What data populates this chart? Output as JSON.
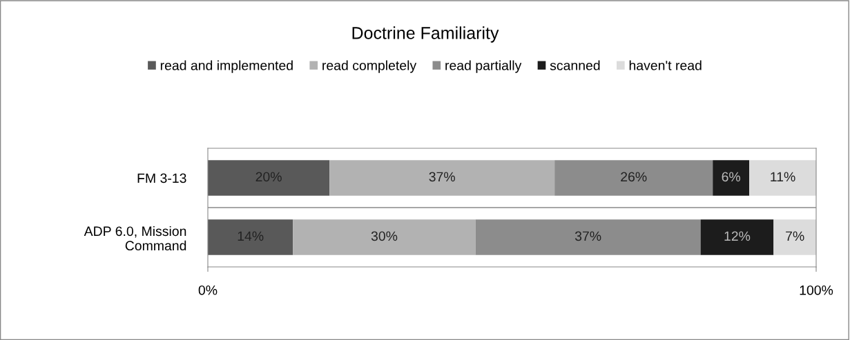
{
  "chart_data": {
    "type": "bar",
    "orientation": "horizontal",
    "stacked": true,
    "title": "Doctrine Familiarity",
    "categories": [
      "FM 3-13",
      "ADP 6.0, Mission\nCommand"
    ],
    "series": [
      {
        "name": "read and implemented",
        "color": "#595959",
        "values": [
          20,
          14
        ]
      },
      {
        "name": "read completely",
        "color": "#b2b2b2",
        "values": [
          37,
          30
        ]
      },
      {
        "name": "read partially",
        "color": "#8c8c8c",
        "values": [
          26,
          37
        ]
      },
      {
        "name": "scanned",
        "color": "#1c1c1c",
        "values": [
          6,
          12
        ]
      },
      {
        "name": "haven't read",
        "color": "#dcdcdc",
        "values": [
          11,
          7
        ]
      }
    ],
    "xlim": [
      0,
      100
    ],
    "xticks": [
      {
        "value": 0,
        "label": "0%"
      },
      {
        "value": 100,
        "label": "100%"
      }
    ],
    "value_labels": [
      [
        "20%",
        "14%"
      ],
      [
        "37%",
        "30%"
      ],
      [
        "26%",
        "37%"
      ],
      [
        "6%",
        "12%"
      ],
      [
        "11%",
        "7%"
      ]
    ],
    "grid": "y",
    "legend": "top"
  }
}
